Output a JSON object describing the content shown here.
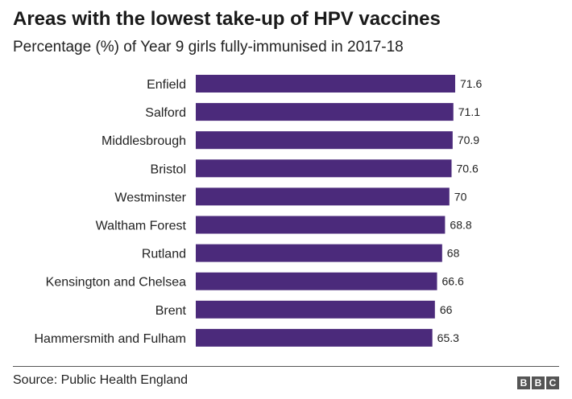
{
  "title": "Areas with the lowest take-up of HPV vaccines",
  "subtitle": "Percentage (%) of Year 9 girls fully-immunised in 2017-18",
  "source": "Source: Public Health England",
  "logo": {
    "letters": [
      "B",
      "B",
      "C"
    ]
  },
  "colors": {
    "bar": "#4b2a7b",
    "text": "#222222",
    "rule": "#555555",
    "logo": "#555555"
  },
  "chart_data": {
    "type": "bar",
    "orientation": "horizontal",
    "categories": [
      "Enfield",
      "Salford",
      "Middlesbrough",
      "Bristol",
      "Westminster",
      "Waltham Forest",
      "Rutland",
      "Kensington and Chelsea",
      "Brent",
      "Hammersmith and Fulham"
    ],
    "values": [
      71.6,
      71.1,
      70.9,
      70.6,
      70,
      68.8,
      68,
      66.6,
      66,
      65.3
    ],
    "value_labels": [
      "71.6",
      "71.1",
      "70.9",
      "70.6",
      "70",
      "68.8",
      "68",
      "66.6",
      "66",
      "65.3"
    ],
    "xlim": [
      0,
      80
    ],
    "grid": false,
    "legend": "none"
  }
}
